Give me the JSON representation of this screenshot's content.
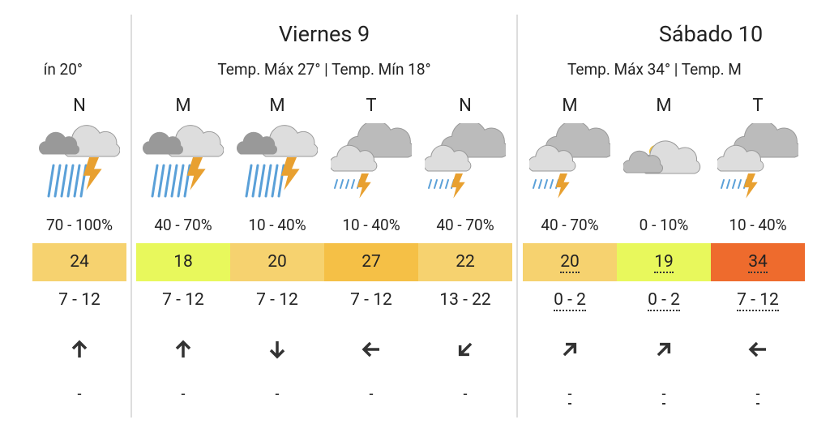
{
  "days": [
    {
      "summary": "ín 20°",
      "periods": [
        {
          "label": "N",
          "precip": "70 - 100%",
          "temp": "24",
          "temp_color": "#f6d26f",
          "wind": "7 - 12",
          "extra": "-"
        }
      ]
    },
    {
      "title": "Viernes 9",
      "summary": "Temp. Máx 27° | Temp. Mín 18°",
      "periods": [
        {
          "label": "M",
          "precip": "40 - 70%",
          "temp": "18",
          "temp_color": "#e8f85c",
          "wind": "7 - 12",
          "extra": "-"
        },
        {
          "label": "M",
          "precip": "10 - 40%",
          "temp": "20",
          "temp_color": "#f6d26f",
          "wind": "7 - 12",
          "extra": "-"
        },
        {
          "label": "T",
          "precip": "10 - 40%",
          "temp": "27",
          "temp_color": "#f5c046",
          "wind": "7 - 12",
          "extra": "-"
        },
        {
          "label": "N",
          "precip": "40 - 70%",
          "temp": "22",
          "temp_color": "#f6d26f",
          "wind": "13 - 22",
          "extra": "-"
        }
      ]
    },
    {
      "title": "Sábado 10",
      "summary": "Temp. Máx 34° | Temp. M",
      "periods": [
        {
          "label": "M",
          "precip": "40 - 70%",
          "temp": "20",
          "temp_color": "#f6d26f",
          "wind": "0 - 2",
          "extra": "-"
        },
        {
          "label": "M",
          "precip": "0 - 10%",
          "temp": "19",
          "temp_color": "#e8f85c",
          "wind": "0 - 2",
          "extra": "-"
        },
        {
          "label": "T",
          "precip": "10 - 40%",
          "temp": "34",
          "temp_color": "#ee6b2d",
          "wind": "7 - 12",
          "extra": "-"
        }
      ]
    }
  ]
}
